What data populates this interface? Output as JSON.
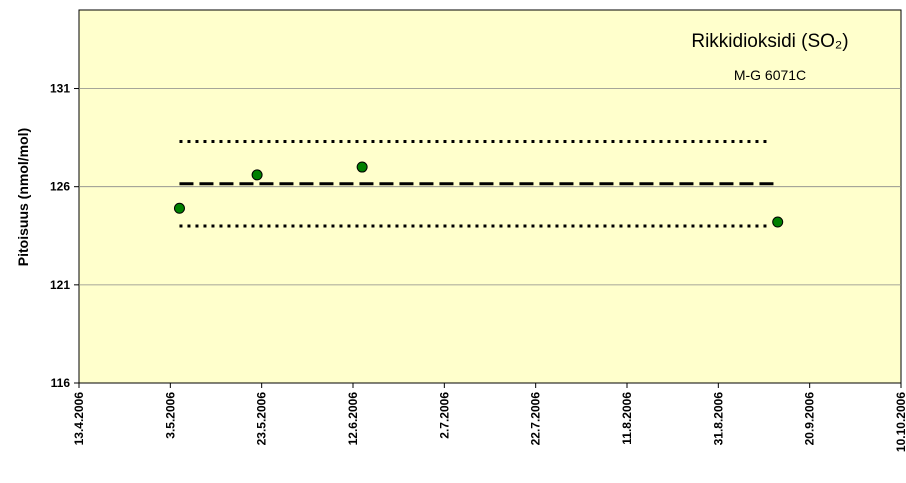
{
  "chart_data": {
    "type": "scatter",
    "title": "Rikkidioksidi (SO₂)",
    "subtitle": "M-G 6071C",
    "ylabel": "Pitoisuus (nmol/mol)",
    "xlim": [
      "2006-04-13",
      "2006-10-10"
    ],
    "xticks": [
      {
        "value": "2006-04-13",
        "label": "13.4.2006"
      },
      {
        "value": "2006-05-03",
        "label": "3.5.2006"
      },
      {
        "value": "2006-05-23",
        "label": "23.5.2006"
      },
      {
        "value": "2006-06-12",
        "label": "12.6.2006"
      },
      {
        "value": "2006-07-02",
        "label": "2.7.2006"
      },
      {
        "value": "2006-07-22",
        "label": "22.7.2006"
      },
      {
        "value": "2006-08-11",
        "label": "11.8.2006"
      },
      {
        "value": "2006-08-31",
        "label": "31.8.2006"
      },
      {
        "value": "2006-09-20",
        "label": "20.9.2006"
      },
      {
        "value": "2006-10-10",
        "label": "10.10.2006"
      }
    ],
    "ylim": [
      116,
      135
    ],
    "yticks": [
      116,
      121,
      126,
      131
    ],
    "grid": true,
    "background": "#ffffcc",
    "series": [
      {
        "style": "markers",
        "color": "#008000",
        "x": [
          "2006-05-05",
          "2006-05-22",
          "2006-06-14",
          "2006-09-13"
        ],
        "values": [
          124.9,
          126.6,
          127.0,
          124.2
        ]
      },
      {
        "style": "dashed",
        "color": "#000000",
        "x": [
          "2006-05-05",
          "2006-09-13"
        ],
        "values": [
          126.15,
          126.15
        ]
      },
      {
        "style": "dotted",
        "color": "#000000",
        "x": [
          "2006-05-05",
          "2006-09-11"
        ],
        "values": [
          128.3,
          128.3
        ]
      },
      {
        "style": "dotted",
        "color": "#000000",
        "x": [
          "2006-05-05",
          "2006-09-11"
        ],
        "values": [
          124.0,
          124.0
        ]
      }
    ]
  }
}
